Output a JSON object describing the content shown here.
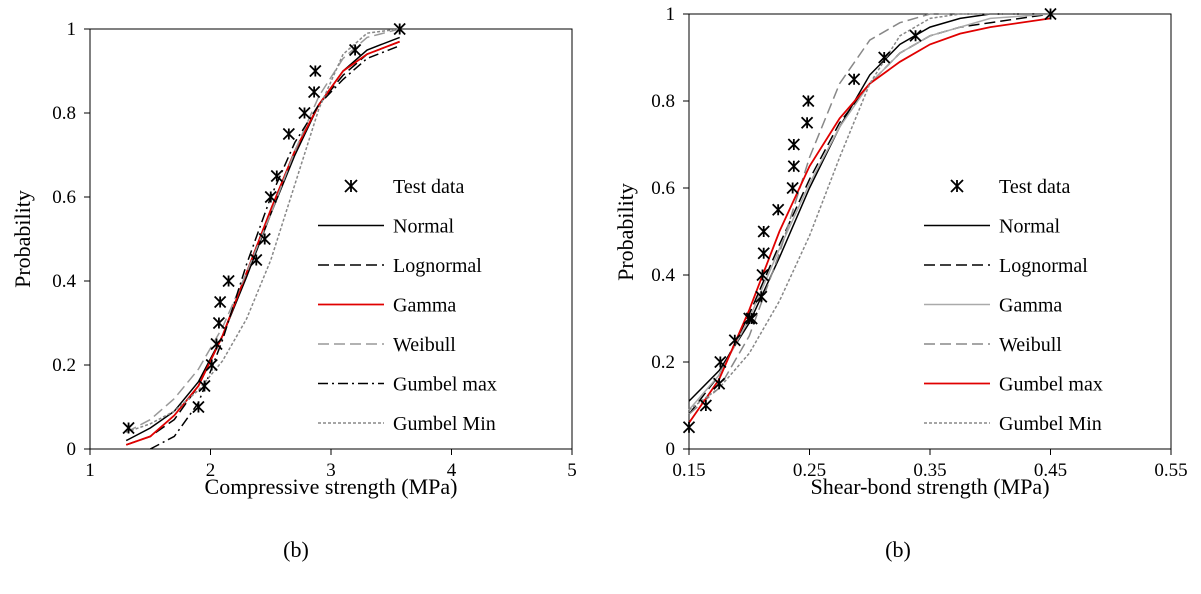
{
  "figure": {
    "captions": [
      "(b)",
      "(b)"
    ]
  },
  "chart_data": [
    {
      "type": "line",
      "xlabel": "Compressive strength (MPa)",
      "ylabel": "Probability",
      "xlim": [
        1,
        5
      ],
      "ylim": [
        0,
        1
      ],
      "xticks": [
        1,
        2,
        3,
        4,
        5
      ],
      "yticks": [
        0,
        0.2,
        0.4,
        0.6,
        0.8,
        1
      ],
      "xtick_labels": [
        "1",
        "2",
        "3",
        "4",
        "5"
      ],
      "ytick_labels": [
        "0",
        "0.2",
        "0.4",
        "0.6",
        "0.8",
        "1"
      ],
      "grid": false,
      "legend_position": "right",
      "test_data": {
        "name": "Test data",
        "marker": "asterisk",
        "x": [
          1.32,
          1.9,
          1.95,
          2.01,
          2.05,
          2.07,
          2.08,
          2.15,
          2.38,
          2.45,
          2.5,
          2.55,
          2.65,
          2.78,
          2.86,
          2.87,
          3.2,
          3.57
        ],
        "y": [
          0.05,
          0.1,
          0.15,
          0.2,
          0.25,
          0.3,
          0.35,
          0.4,
          0.45,
          0.5,
          0.6,
          0.65,
          0.75,
          0.8,
          0.85,
          0.9,
          0.95,
          1.0
        ]
      },
      "series": [
        {
          "name": "Normal",
          "color": "#000000",
          "dash": "solid",
          "x": [
            1.3,
            1.5,
            1.7,
            1.9,
            2.1,
            2.3,
            2.5,
            2.7,
            2.9,
            3.1,
            3.3,
            3.57
          ],
          "y": [
            0.02,
            0.05,
            0.09,
            0.16,
            0.27,
            0.41,
            0.56,
            0.7,
            0.82,
            0.9,
            0.95,
            0.98
          ]
        },
        {
          "name": "Lognormal",
          "color": "#000000",
          "dash": "long-dash",
          "x": [
            1.3,
            1.5,
            1.7,
            1.9,
            2.1,
            2.3,
            2.5,
            2.7,
            2.9,
            3.1,
            3.3,
            3.57
          ],
          "y": [
            0.01,
            0.03,
            0.07,
            0.15,
            0.27,
            0.42,
            0.57,
            0.71,
            0.82,
            0.89,
            0.94,
            0.97
          ]
        },
        {
          "name": "Gamma",
          "color": "#e00000",
          "dash": "solid",
          "x": [
            1.3,
            1.5,
            1.7,
            1.9,
            2.1,
            2.3,
            2.5,
            2.7,
            2.9,
            3.1,
            3.3,
            3.57
          ],
          "y": [
            0.01,
            0.03,
            0.08,
            0.15,
            0.27,
            0.42,
            0.57,
            0.71,
            0.82,
            0.9,
            0.94,
            0.97
          ]
        },
        {
          "name": "Weibull",
          "color": "#999999",
          "dash": "long-dash",
          "x": [
            1.3,
            1.5,
            1.7,
            1.9,
            2.1,
            2.3,
            2.5,
            2.7,
            2.9,
            3.1,
            3.3,
            3.57
          ],
          "y": [
            0.04,
            0.07,
            0.12,
            0.19,
            0.29,
            0.42,
            0.56,
            0.71,
            0.84,
            0.93,
            0.98,
            1.0
          ]
        },
        {
          "name": "Gumbel max",
          "color": "#000000",
          "dash": "dash-dot",
          "x": [
            1.5,
            1.7,
            1.9,
            2.1,
            2.3,
            2.5,
            2.7,
            2.9,
            3.1,
            3.3,
            3.57
          ],
          "y": [
            0.0,
            0.03,
            0.11,
            0.26,
            0.44,
            0.6,
            0.73,
            0.82,
            0.88,
            0.93,
            0.96
          ]
        },
        {
          "name": "Gumbel Min",
          "color": "#888888",
          "dash": "dotted",
          "x": [
            1.3,
            1.5,
            1.7,
            1.9,
            2.1,
            2.3,
            2.5,
            2.7,
            2.9,
            3.1,
            3.3,
            3.57
          ],
          "y": [
            0.04,
            0.06,
            0.09,
            0.14,
            0.21,
            0.31,
            0.45,
            0.63,
            0.81,
            0.94,
            0.99,
            1.0
          ]
        }
      ]
    },
    {
      "type": "line",
      "xlabel": "Shear-bond strength (MPa)",
      "ylabel": "Probability",
      "xlim": [
        0.15,
        0.55
      ],
      "ylim": [
        0,
        1
      ],
      "xticks": [
        0.15,
        0.25,
        0.35,
        0.45,
        0.55
      ],
      "yticks": [
        0,
        0.2,
        0.4,
        0.6,
        0.8,
        1
      ],
      "xtick_labels": [
        "0.15",
        "0.25",
        "0.35",
        "0.45",
        "0.55"
      ],
      "ytick_labels": [
        "0",
        "0.2",
        "0.4",
        "0.6",
        "0.8",
        "1"
      ],
      "grid": false,
      "legend_position": "right",
      "test_data": {
        "name": "Test data",
        "marker": "asterisk",
        "x": [
          0.15,
          0.164,
          0.175,
          0.176,
          0.188,
          0.2,
          0.202,
          0.21,
          0.211,
          0.212,
          0.212,
          0.224,
          0.236,
          0.237,
          0.237,
          0.248,
          0.249,
          0.287,
          0.312,
          0.338,
          0.45
        ],
        "y": [
          0.05,
          0.1,
          0.15,
          0.2,
          0.25,
          0.3,
          0.3,
          0.35,
          0.4,
          0.45,
          0.5,
          0.55,
          0.6,
          0.65,
          0.7,
          0.75,
          0.8,
          0.85,
          0.9,
          0.95,
          1.0
        ]
      },
      "series": [
        {
          "name": "Normal",
          "color": "#000000",
          "dash": "solid",
          "x": [
            0.15,
            0.175,
            0.2,
            0.225,
            0.25,
            0.275,
            0.3,
            0.325,
            0.35,
            0.375,
            0.4,
            0.45
          ],
          "y": [
            0.11,
            0.18,
            0.29,
            0.44,
            0.6,
            0.74,
            0.86,
            0.93,
            0.97,
            0.99,
            1.0,
            1.0
          ]
        },
        {
          "name": "Lognormal",
          "color": "#000000",
          "dash": "long-dash",
          "x": [
            0.15,
            0.175,
            0.2,
            0.225,
            0.25,
            0.275,
            0.3,
            0.325,
            0.35,
            0.375,
            0.4,
            0.45
          ],
          "y": [
            0.08,
            0.17,
            0.31,
            0.47,
            0.62,
            0.75,
            0.84,
            0.91,
            0.95,
            0.97,
            0.98,
            1.0
          ]
        },
        {
          "name": "Gamma",
          "color": "#aaaaaa",
          "dash": "solid",
          "x": [
            0.15,
            0.175,
            0.2,
            0.225,
            0.25,
            0.275,
            0.3,
            0.325,
            0.35,
            0.375,
            0.4,
            0.45
          ],
          "y": [
            0.09,
            0.17,
            0.3,
            0.46,
            0.61,
            0.74,
            0.84,
            0.91,
            0.95,
            0.97,
            0.99,
            1.0
          ]
        },
        {
          "name": "Weibull",
          "color": "#888888",
          "dash": "long-dash",
          "x": [
            0.15,
            0.175,
            0.2,
            0.225,
            0.25,
            0.275,
            0.3,
            0.325,
            0.35,
            0.375,
            0.4,
            0.45
          ],
          "y": [
            0.08,
            0.14,
            0.26,
            0.45,
            0.67,
            0.84,
            0.94,
            0.98,
            1.0,
            1.0,
            1.0,
            1.0
          ]
        },
        {
          "name": "Gumbel max",
          "color": "#e00000",
          "dash": "solid",
          "x": [
            0.15,
            0.175,
            0.2,
            0.225,
            0.25,
            0.275,
            0.3,
            0.325,
            0.35,
            0.375,
            0.4,
            0.45
          ],
          "y": [
            0.06,
            0.16,
            0.32,
            0.5,
            0.65,
            0.76,
            0.84,
            0.89,
            0.93,
            0.955,
            0.97,
            0.99
          ]
        },
        {
          "name": "Gumbel Min",
          "color": "#888888",
          "dash": "dotted",
          "x": [
            0.15,
            0.175,
            0.2,
            0.225,
            0.25,
            0.275,
            0.3,
            0.325,
            0.35,
            0.375,
            0.4,
            0.45
          ],
          "y": [
            0.09,
            0.14,
            0.22,
            0.34,
            0.49,
            0.67,
            0.84,
            0.95,
            0.99,
            1.0,
            1.0,
            1.0
          ]
        }
      ]
    }
  ]
}
